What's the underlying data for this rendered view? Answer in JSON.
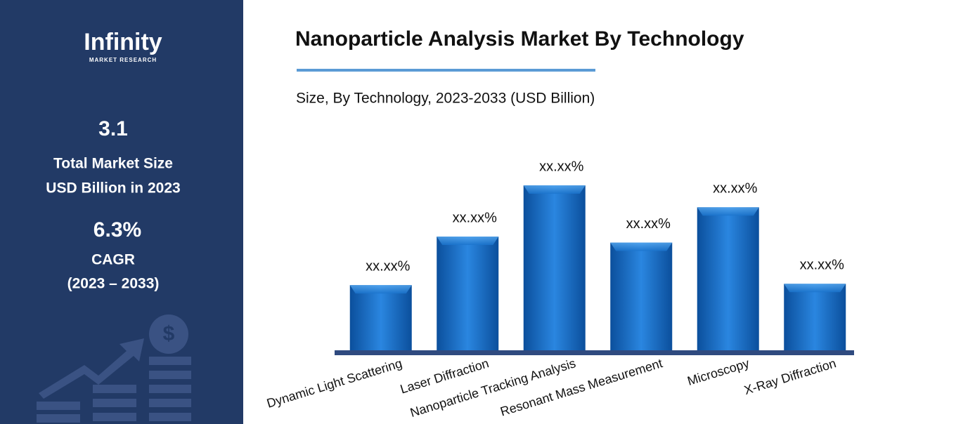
{
  "sidebar": {
    "logo": "Infinity",
    "logo_tagline": "MARKET RESEARCH",
    "market_size": "3.1",
    "market_size_label_1": "Total Market Size",
    "market_size_label_2": "USD Billion in 2023",
    "cagr": "6.3%",
    "cagr_label": "CAGR",
    "cagr_period": "(2023 – 2033)"
  },
  "chart_data": {
    "type": "bar",
    "title": "Nanoparticle Analysis Market By Technology",
    "subtitle": "Size, By Technology, 2023-2033 (USD Billion)",
    "categories": [
      "Dynamic Light Scattering",
      "Laser Diffraction",
      "Nanoparticle Tracking Analysis",
      "Resonant Mass Measurement",
      "Microscopy",
      "X-Ray Diffraction"
    ],
    "values": [
      9.9,
      17.2,
      24.9,
      16.3,
      21.6,
      10.1
    ],
    "value_labels": [
      "xx.xx%",
      "xx.xx%",
      "xx.xx%",
      "xx.xx%",
      "xx.xx%",
      "xx.xx%"
    ],
    "color": "#1a73cc"
  }
}
